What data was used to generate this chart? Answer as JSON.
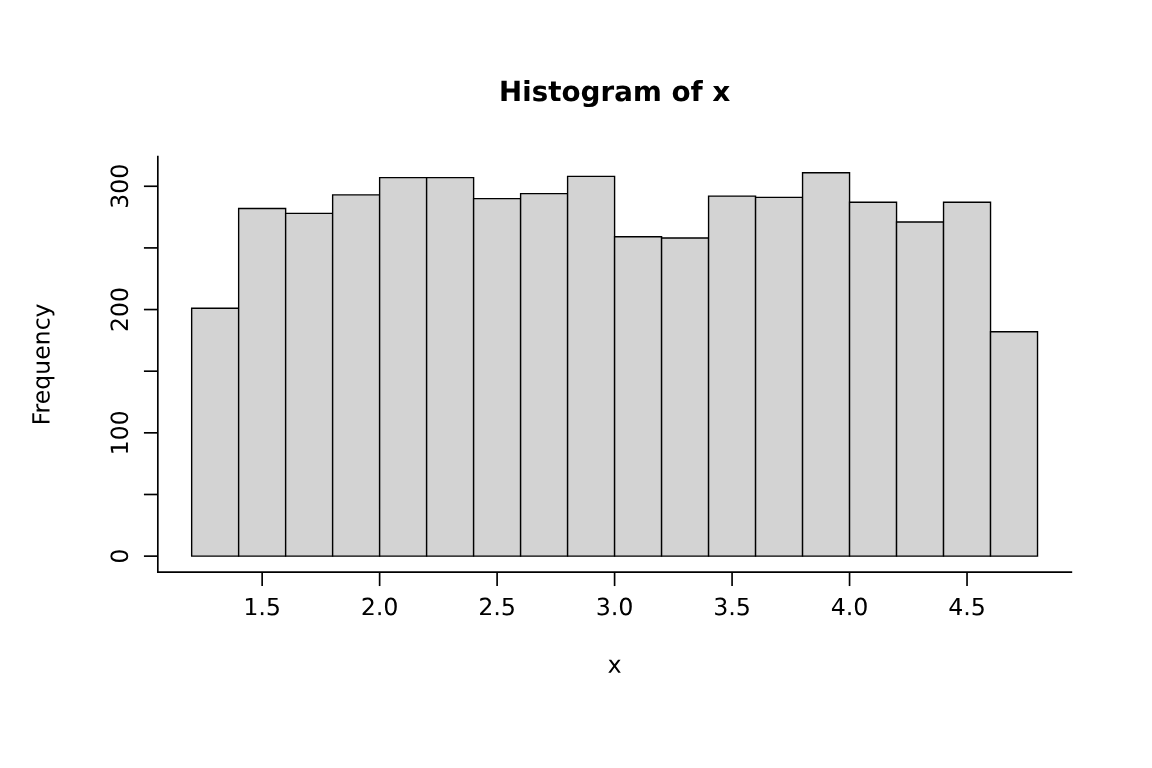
{
  "chart_data": {
    "type": "histogram",
    "title": "Histogram of x",
    "xlabel": "x",
    "ylabel": "Frequency",
    "bins": [
      1.2,
      1.4,
      1.6,
      1.8,
      2.0,
      2.2,
      2.4,
      2.6,
      2.8,
      3.0,
      3.2,
      3.4,
      3.6,
      3.8,
      4.0,
      4.2,
      4.4,
      4.6,
      4.8
    ],
    "values": [
      201,
      282,
      278,
      293,
      307,
      307,
      290,
      294,
      308,
      259,
      258,
      292,
      291,
      311,
      287,
      271,
      287,
      182
    ],
    "color": "#d3d3d3",
    "xlim": [
      1.056,
      4.944
    ],
    "ylim": [
      -13,
      324
    ],
    "xticks": [
      1.5,
      {
        "value": 2,
        "label": "2.0"
      },
      2.5,
      {
        "value": 3,
        "label": "3.0"
      },
      3.5,
      {
        "value": 4,
        "label": "4.0"
      },
      4.5
    ],
    "yticks": [
      0,
      {
        "value": 50,
        "label": null
      },
      100,
      {
        "value": 150,
        "label": null
      },
      200,
      {
        "value": 250,
        "label": null
      },
      300
    ],
    "grid": false,
    "legend": false
  }
}
